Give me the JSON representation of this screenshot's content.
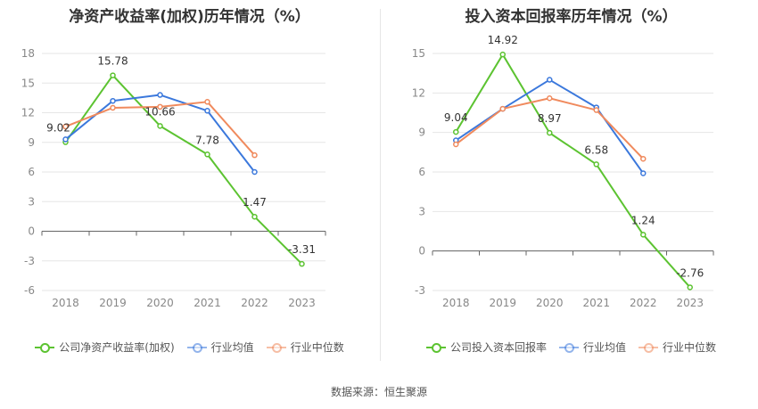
{
  "source_label": "数据来源：恒生聚源",
  "chart_data": [
    {
      "type": "line",
      "title": "净资产收益率(加权)历年情况（%）",
      "categories": [
        "2018",
        "2019",
        "2020",
        "2021",
        "2022",
        "2023"
      ],
      "ylim": [
        -6,
        18
      ],
      "yticks": [
        -6,
        -3,
        0,
        3,
        6,
        9,
        12,
        15,
        18
      ],
      "grid": true,
      "legend_position": "bottom",
      "series": [
        {
          "name": "公司净资产收益率(加权)",
          "color": "#5cc331",
          "values": [
            9.02,
            15.78,
            10.66,
            7.78,
            1.47,
            -3.31
          ],
          "labels": [
            "9.02",
            "15.78",
            "10.66",
            "7.78",
            "1.47",
            "-3.31"
          ]
        },
        {
          "name": "行业均值",
          "color": "#3b78dc",
          "values": [
            9.3,
            13.2,
            13.8,
            12.2,
            6.0,
            null
          ],
          "labels": []
        },
        {
          "name": "行业中位数",
          "color": "#f08a5d",
          "values": [
            10.6,
            12.5,
            12.6,
            13.1,
            7.7,
            null
          ],
          "labels": []
        }
      ]
    },
    {
      "type": "line",
      "title": "投入资本回报率历年情况（%）",
      "categories": [
        "2018",
        "2019",
        "2020",
        "2021",
        "2022",
        "2023"
      ],
      "ylim": [
        -3,
        15
      ],
      "yticks": [
        -3,
        0,
        3,
        6,
        9,
        12,
        15
      ],
      "grid": true,
      "legend_position": "bottom",
      "series": [
        {
          "name": "公司投入资本回报率",
          "color": "#5cc331",
          "values": [
            9.04,
            14.92,
            8.97,
            6.58,
            1.24,
            -2.76
          ],
          "labels": [
            "9.04",
            "14.92",
            "8.97",
            "6.58",
            "1.24",
            "-2.76"
          ]
        },
        {
          "name": "行业均值",
          "color": "#3b78dc",
          "values": [
            8.4,
            10.8,
            13.0,
            10.9,
            5.9,
            null
          ],
          "labels": []
        },
        {
          "name": "行业中位数",
          "color": "#f08a5d",
          "values": [
            8.1,
            10.8,
            11.6,
            10.7,
            7.0,
            null
          ],
          "labels": []
        }
      ]
    }
  ]
}
